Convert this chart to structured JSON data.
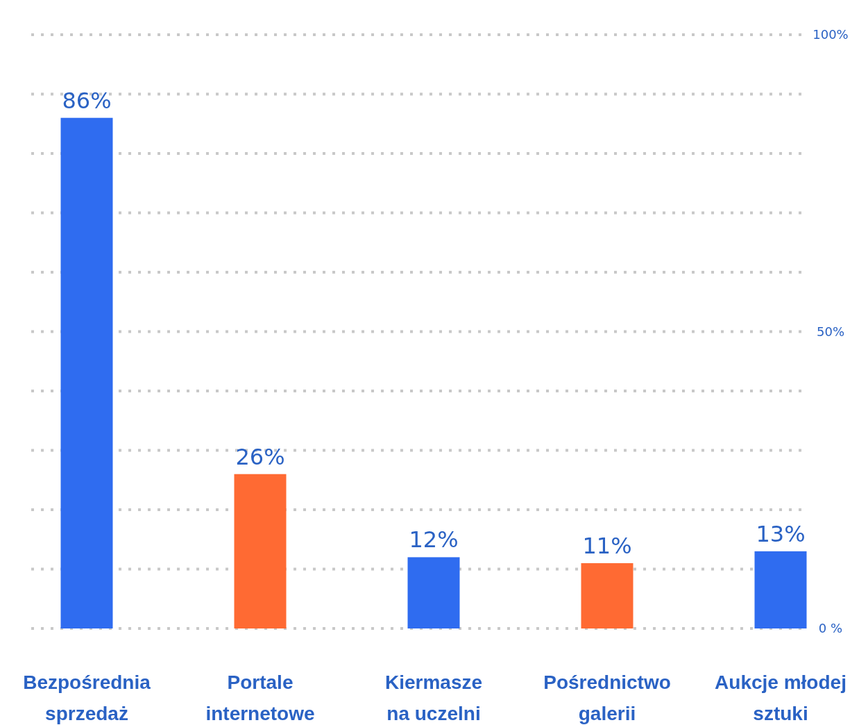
{
  "chart_data": {
    "type": "bar",
    "categories": [
      "Bezpośrednia\nsprzedaż",
      "Portale\ninternetowe",
      "Kiermasze\nna uczelni",
      "Pośrednictwo\ngalerii",
      "Aukcje młodej\nsztuki"
    ],
    "values": [
      86,
      26,
      12,
      11,
      13
    ],
    "colors": [
      "#2f6cf0",
      "#ff6a33",
      "#2f6cf0",
      "#ff6a33",
      "#2f6cf0"
    ],
    "value_labels": [
      "86%",
      "26%",
      "12%",
      "11%",
      "13%"
    ],
    "ylim": [
      0,
      100
    ],
    "yticks": [
      {
        "value": 0,
        "label": "0 %"
      },
      {
        "value": 10,
        "label": null
      },
      {
        "value": 20,
        "label": null
      },
      {
        "value": 30,
        "label": null
      },
      {
        "value": 40,
        "label": null
      },
      {
        "value": 50,
        "label": "50%"
      },
      {
        "value": 60,
        "label": null
      },
      {
        "value": 70,
        "label": null
      },
      {
        "value": 80,
        "label": null
      },
      {
        "value": 90,
        "label": null
      },
      {
        "value": 100,
        "label": "100%"
      }
    ],
    "grid": "y"
  }
}
